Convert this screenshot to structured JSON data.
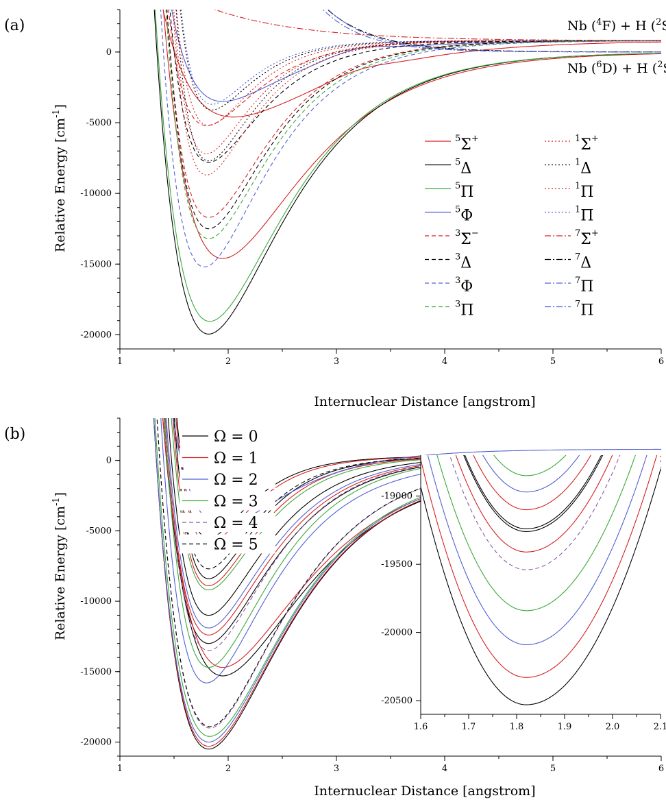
{
  "chart_data": [
    {
      "type": "line",
      "panel_label": "(a)",
      "xlabel": "Internuclear Distance [angstrom]",
      "ylabel": "Relative Energy [cm",
      "ylabel_sup": "-1",
      "ylabel_close": "]",
      "xlim": [
        1,
        6
      ],
      "ylim": [
        -21000,
        3000
      ],
      "xticks": [
        "1",
        "2",
        "3",
        "4",
        "5",
        "6"
      ],
      "yticks": [
        "0",
        "-5000",
        "-10000",
        "-15000",
        "-20000"
      ],
      "asymptote_labels": [
        {
          "pre": "Nb (",
          "sup1": "4",
          "mid": "F) + H (",
          "sup2": "2",
          "post": "S)",
          "y": 800
        },
        {
          "pre": "Nb (",
          "sup1": "6",
          "mid": "D) + H (",
          "sup2": "2",
          "post": "S)",
          "y": 0
        }
      ],
      "series": [
        {
          "name": "5Σ+",
          "mult": "5",
          "sym": "Σ",
          "suf": "+",
          "color": "#d62020",
          "dash": "solid",
          "curves": [
            {
              "De": 14600,
              "re": 1.95,
              "a": 1.35,
              "asym": 0
            },
            {
              "De": 5400,
              "re": 2.05,
              "a": 1.2,
              "asym": 800,
              "hump": 300
            }
          ]
        },
        {
          "name": "5Δ",
          "mult": "5",
          "sym": "Δ",
          "suf": "",
          "color": "#000000",
          "dash": "solid",
          "curves": [
            {
              "De": 19950,
              "re": 1.82,
              "a": 1.45,
              "asym": 0
            }
          ]
        },
        {
          "name": "5Π",
          "mult": "5",
          "sym": "Π",
          "suf": "",
          "color": "#3aa83a",
          "dash": "solid",
          "curves": [
            {
              "De": 19050,
              "re": 1.83,
              "a": 1.45,
              "asym": 0
            }
          ]
        },
        {
          "name": "5Φ",
          "mult": "5",
          "sym": "Φ",
          "suf": "",
          "color": "#5060d0",
          "dash": "solid",
          "curves": [
            {
              "De": 4300,
              "re": 1.95,
              "a": 1.7,
              "asym": 800,
              "hump": 400
            }
          ]
        },
        {
          "name": "3Σ−",
          "mult": "3",
          "sym": "Σ",
          "suf": "−",
          "color": "#d62020",
          "dash": "dash",
          "curves": [
            {
              "De": 12500,
              "re": 1.82,
              "a": 1.9,
              "asym": 800
            },
            {
              "De": 6000,
              "re": 1.8,
              "a": 2.2,
              "asym": 800
            }
          ]
        },
        {
          "name": "3Δ",
          "mult": "3",
          "sym": "Δ",
          "suf": "",
          "color": "#000000",
          "dash": "dash",
          "curves": [
            {
              "De": 13300,
              "re": 1.82,
              "a": 1.9,
              "asym": 800
            },
            {
              "De": 8600,
              "re": 1.82,
              "a": 2.1,
              "asym": 800
            }
          ]
        },
        {
          "name": "3Φ",
          "mult": "3",
          "sym": "Φ",
          "suf": "",
          "color": "#5060d0",
          "dash": "dash",
          "curves": [
            {
              "De": 16000,
              "re": 1.78,
              "a": 1.8,
              "asym": 800
            }
          ]
        },
        {
          "name": "3Π",
          "mult": "3",
          "sym": "Π",
          "suf": "",
          "color": "#3aa83a",
          "dash": "dash",
          "curves": [
            {
              "De": 14000,
              "re": 1.82,
              "a": 1.85,
              "asym": 800
            }
          ]
        },
        {
          "name": "1Σ+",
          "mult": "1",
          "sym": "Σ",
          "suf": "+",
          "color": "#d62020",
          "dash": "dot",
          "curves": [
            {
              "De": 9500,
              "re": 1.8,
              "a": 2.4,
              "asym": 800
            },
            {
              "De": 6000,
              "re": 1.82,
              "a": 2.6,
              "asym": 800
            }
          ]
        },
        {
          "name": "1Δ",
          "mult": "1",
          "sym": "Δ",
          "suf": "",
          "color": "#000000",
          "dash": "dot",
          "curves": [
            {
              "De": 8500,
              "re": 1.82,
              "a": 2.5,
              "asym": 800
            },
            {
              "De": 4900,
              "re": 1.85,
              "a": 2.7,
              "asym": 800
            }
          ]
        },
        {
          "name": "1Π",
          "mult": "1",
          "sym": "Π",
          "suf": "",
          "color": "#d62020",
          "dash": "dot",
          "curves": [
            {
              "De": 8000,
              "re": 1.8,
              "a": 2.5,
              "asym": 800
            }
          ]
        },
        {
          "name": "1Π",
          "mult": "1",
          "sym": "Π",
          "suf": "",
          "color": "#5060d0",
          "dash": "dot",
          "curves": [
            {
              "De": 4500,
              "re": 1.85,
              "a": 2.8,
              "asym": 800
            }
          ]
        },
        {
          "name": "7Σ+",
          "mult": "7",
          "sym": "Σ",
          "suf": "+",
          "color": "#d62020",
          "dash": "dashdot",
          "curves": [
            {
              "type": "repulsive",
              "asym": 800,
              "c": 1900,
              "b": 1.2,
              "x0": 2
            }
          ]
        },
        {
          "name": "7Δ",
          "mult": "7",
          "sym": "Δ",
          "suf": "",
          "color": "#000000",
          "dash": "dashdot",
          "curves": [
            {
              "type": "repulsive",
              "asym": 0,
              "c": 2500,
              "b": 2.2,
              "x0": 3
            }
          ]
        },
        {
          "name": "7Π",
          "mult": "7",
          "sym": "Π",
          "suf": "",
          "color": "#5060d0",
          "dash": "dashdot",
          "curves": [
            {
              "type": "repulsive",
              "asym": 0,
              "c": 2500,
              "b": 2.4,
              "x0": 3
            }
          ]
        },
        {
          "name": "7Π",
          "mult": "7",
          "sym": "Π",
          "suf": "",
          "color": "#5060d0",
          "dash": "dashdot",
          "curves": [
            {
              "type": "repulsive",
              "asym": 0,
              "c": 2200,
              "b": 2.5,
              "x0": 3
            }
          ]
        }
      ]
    },
    {
      "type": "line",
      "panel_label": "(b)",
      "xlabel": "Internuclear Distance [angstrom]",
      "ylabel": "Relative Energy [cm",
      "ylabel_sup": "-1",
      "ylabel_close": "]",
      "xlim": [
        1,
        6
      ],
      "ylim": [
        -21000,
        3000
      ],
      "xticks": [
        "1",
        "2",
        "3",
        "4",
        "5",
        "6"
      ],
      "yticks": [
        "0",
        "-5000",
        "-10000",
        "-15000",
        "-20000"
      ],
      "series": [
        {
          "name": "Ω = 0",
          "color": "#000000",
          "dash": "solid",
          "curves": [
            {
              "De": 19900,
              "re": 1.82,
              "a": 1.45,
              "asym": -600
            },
            {
              "De": 14800,
              "re": 1.95,
              "a": 1.35,
              "asym": -500
            },
            {
              "De": 13300,
              "re": 1.82,
              "a": 1.8,
              "asym": 300
            },
            {
              "De": 11300,
              "re": 1.82,
              "a": 2.0,
              "asym": 300
            },
            {
              "De": 8700,
              "re": 1.82,
              "a": 2.4,
              "asym": 300
            },
            {
              "De": 5800,
              "re": 1.82,
              "a": 2.7,
              "asym": 300
            }
          ]
        },
        {
          "name": "Ω = 1",
          "color": "#d62020",
          "dash": "solid",
          "curves": [
            {
              "De": 19700,
              "re": 1.82,
              "a": 1.45,
              "asym": -600
            },
            {
              "De": 14300,
              "re": 1.95,
              "a": 1.35,
              "asym": -400
            },
            {
              "De": 12700,
              "re": 1.82,
              "a": 1.85,
              "asym": 300
            },
            {
              "De": 9200,
              "re": 1.82,
              "a": 2.3,
              "asym": 300
            },
            {
              "De": 6200,
              "re": 1.82,
              "a": 2.6,
              "asym": 300
            }
          ]
        },
        {
          "name": "Ω = 2",
          "color": "#5060d0",
          "dash": "solid",
          "curves": [
            {
              "De": 19500,
              "re": 1.82,
              "a": 1.45,
              "asym": -500
            },
            {
              "De": 15800,
              "re": 1.8,
              "a": 1.75,
              "asym": 0
            },
            {
              "De": 12200,
              "re": 1.82,
              "a": 1.9,
              "asym": 300
            },
            {
              "De": 5400,
              "re": 1.95,
              "a": 1.7,
              "asym": 800
            }
          ]
        },
        {
          "name": "Ω = 3",
          "color": "#3aa83a",
          "dash": "solid",
          "curves": [
            {
              "De": 19200,
              "re": 1.83,
              "a": 1.45,
              "asym": -400
            },
            {
              "De": 15000,
              "re": 1.82,
              "a": 1.8,
              "asym": 300
            },
            {
              "De": 9500,
              "re": 1.82,
              "a": 2.2,
              "asym": 300
            }
          ]
        },
        {
          "name": "Ω = 4",
          "color": "#8a5aa0",
          "dash": "dash",
          "curves": [
            {
              "De": 19000,
              "re": 1.83,
              "a": 1.5,
              "asym": 0
            },
            {
              "De": 13800,
              "re": 1.82,
              "a": 1.85,
              "asym": 300
            }
          ]
        },
        {
          "name": "Ω = 5",
          "color": "#000000",
          "dash": "dash",
          "curves": [
            {
              "De": 18900,
              "re": 1.83,
              "a": 1.5,
              "asym": 0
            },
            {
              "De": 8000,
              "re": 1.82,
              "a": 2.4,
              "asym": 300
            }
          ]
        }
      ],
      "inset": {
        "xlim": [
          1.6,
          2.1
        ],
        "ylim": [
          -20600,
          -18700
        ],
        "xticks": [
          "1.6",
          "1.7",
          "1.8",
          "1.9",
          "2.0",
          "2.1"
        ],
        "yticks": [
          "-19000",
          "-19500",
          "-20000",
          "-20500"
        ],
        "minima": [
          {
            "E": -20530,
            "color": "#000000",
            "dash": "solid"
          },
          {
            "E": -20330,
            "color": "#d62020",
            "dash": "solid"
          },
          {
            "E": -20090,
            "color": "#5060d0",
            "dash": "solid"
          },
          {
            "E": -19840,
            "color": "#3aa83a",
            "dash": "solid"
          },
          {
            "E": -19540,
            "color": "#8a5aa0",
            "dash": "dash"
          },
          {
            "E": -19410,
            "color": "#d62020",
            "dash": "solid"
          },
          {
            "E": -19260,
            "color": "#000000",
            "dash": "solid"
          },
          {
            "E": -19240,
            "color": "#000000",
            "dash": "solid"
          },
          {
            "E": -19100,
            "color": "#d62020",
            "dash": "solid"
          },
          {
            "E": -18970,
            "color": "#5060d0",
            "dash": "solid"
          },
          {
            "E": -18850,
            "color": "#3aa83a",
            "dash": "solid"
          }
        ]
      }
    }
  ]
}
